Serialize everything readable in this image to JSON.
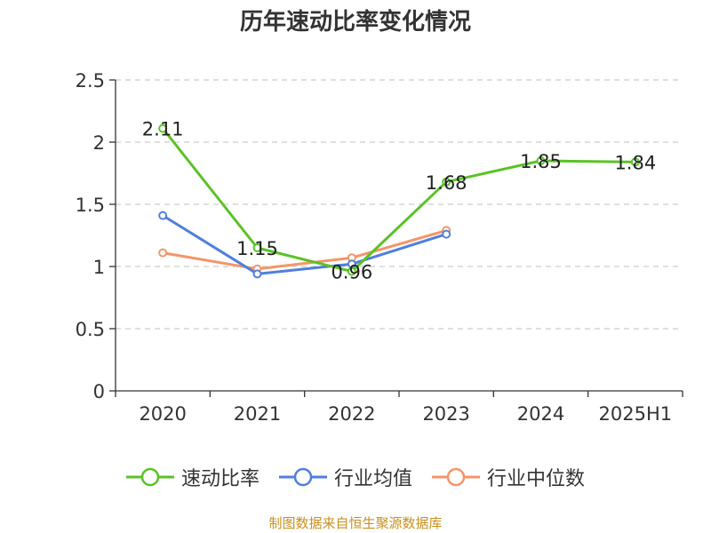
{
  "chart_data": {
    "type": "line",
    "title": "历年速动比率变化情况",
    "categories": [
      "2020",
      "2021",
      "2022",
      "2023",
      "2024",
      "2025H1"
    ],
    "series": [
      {
        "name": "速动比率",
        "color": "#5bc226",
        "values": [
          2.11,
          1.15,
          0.96,
          1.68,
          1.85,
          1.84
        ],
        "show_labels": true
      },
      {
        "name": "行业均值",
        "color": "#4f7fdc",
        "values": [
          1.41,
          0.94,
          1.02,
          1.26,
          null,
          null
        ],
        "show_labels": false
      },
      {
        "name": "行业中位数",
        "color": "#f59468",
        "values": [
          1.11,
          0.98,
          1.07,
          1.29,
          null,
          null
        ],
        "show_labels": false
      }
    ],
    "ylim": [
      0,
      2.5
    ],
    "yticks": [
      0,
      0.5,
      1,
      1.5,
      2,
      2.5
    ],
    "ytick_labels": [
      "0",
      "0.5",
      "1",
      "1.5",
      "2",
      "2.5"
    ],
    "grid": true,
    "legend_position": "bottom"
  },
  "footer": {
    "source": "制图数据来自恒生聚源数据库"
  }
}
